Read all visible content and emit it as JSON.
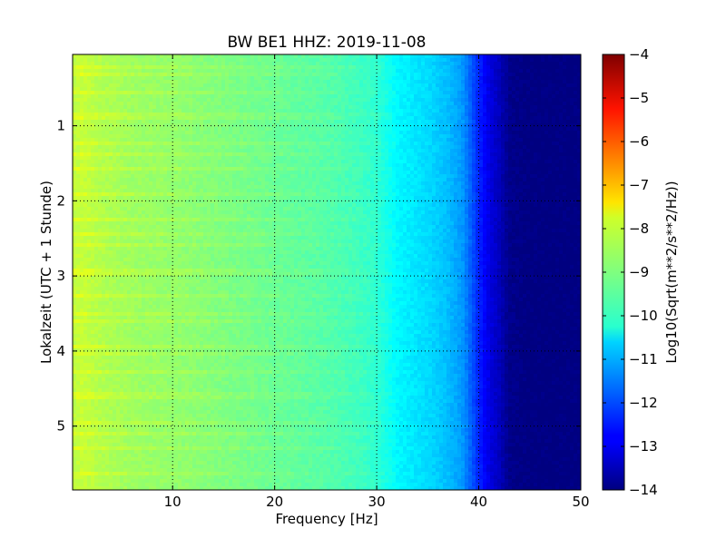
{
  "chart_data": {
    "type": "heatmap",
    "title": "BW BE1 HHZ: 2019-11-08",
    "xlabel": "Frequency [Hz]",
    "ylabel": "Lokalzeit (UTC + 1 Stunde)",
    "xlim": [
      0.2,
      50
    ],
    "ylim": [
      5.85,
      0.05
    ],
    "xticks": [
      10,
      20,
      30,
      40,
      50
    ],
    "yticks": [
      1,
      2,
      3,
      4,
      5
    ],
    "grid": true,
    "colorbar": {
      "label": "Log10(Sqrt(m**2/s**2/Hz))",
      "range": [
        -14,
        -4
      ],
      "ticks": [
        -14,
        -13,
        -12,
        -11,
        -10,
        -9,
        -8,
        -7,
        -6,
        -5,
        -4
      ],
      "colormap": "jet"
    },
    "spectrum_profile": {
      "frequency_hz": [
        0.2,
        1,
        3,
        6,
        10,
        15,
        20,
        25,
        28,
        30,
        32,
        35,
        37,
        38.5,
        40,
        41,
        42,
        43,
        45,
        50
      ],
      "log10_value": [
        -8.4,
        -8.3,
        -8.5,
        -8.7,
        -8.8,
        -9.0,
        -9.2,
        -9.4,
        -9.6,
        -9.8,
        -10.3,
        -10.6,
        -10.9,
        -11.3,
        -12.4,
        -13.0,
        -13.4,
        -13.9,
        -14,
        -14
      ]
    }
  }
}
